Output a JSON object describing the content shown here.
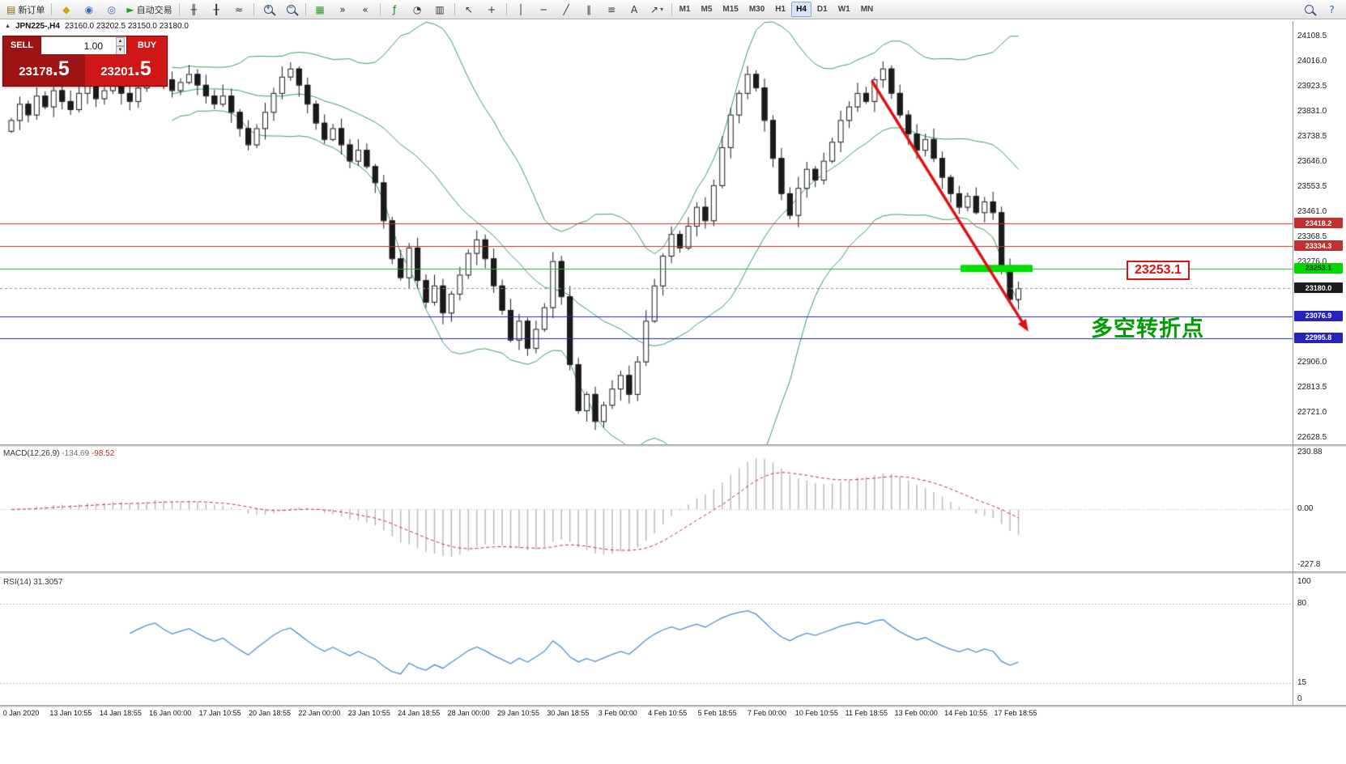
{
  "toolbar": {
    "icons": [
      {
        "name": "new-order-button",
        "glyph": "▤",
        "label": "新订单",
        "color": "#8a6d00"
      },
      {
        "name": "separator"
      },
      {
        "name": "profiles-icon",
        "glyph": "◆",
        "color": "#d8a400"
      },
      {
        "name": "market-watch-icon",
        "glyph": "◉",
        "color": "#3a6fbf"
      },
      {
        "name": "navigator-icon",
        "glyph": "◎",
        "color": "#3a6fbf"
      },
      {
        "name": "autotrading-button",
        "glyph": "►",
        "label": "自动交易",
        "color": "#18a018"
      },
      {
        "name": "separator"
      },
      {
        "name": "bar-chart-icon",
        "glyph": "╫",
        "color": "#333333"
      },
      {
        "name": "candlestick-chart-icon",
        "glyph": "╂",
        "color": "#333333"
      },
      {
        "name": "line-chart-icon",
        "glyph": "≈",
        "color": "#333333"
      },
      {
        "name": "separator"
      },
      {
        "name": "zoom-in-icon",
        "kind": "mag",
        "sign": "+"
      },
      {
        "name": "zoom-out-icon",
        "kind": "mag",
        "sign": "−"
      },
      {
        "name": "separator"
      },
      {
        "name": "tile-windows-icon",
        "glyph": "▦",
        "color": "#2f9e2f"
      },
      {
        "name": "auto-scroll-icon",
        "glyph": "»",
        "color": "#333333"
      },
      {
        "name": "chart-shift-icon",
        "glyph": "«",
        "color": "#333333"
      },
      {
        "name": "separator"
      },
      {
        "name": "indicators-icon",
        "glyph": "ƒ",
        "color": "#0a7d0a"
      },
      {
        "name": "periods-icon",
        "glyph": "◔",
        "color": "#333333"
      },
      {
        "name": "templates-icon",
        "glyph": "▥",
        "color": "#333333"
      },
      {
        "name": "separator"
      },
      {
        "name": "cursor-icon",
        "glyph": "↖",
        "color": "#333333"
      },
      {
        "name": "crosshair-icon",
        "glyph": "+",
        "color": "#333333"
      },
      {
        "name": "separator"
      },
      {
        "name": "vertical-line-icon",
        "glyph": "│",
        "color": "#333333"
      },
      {
        "name": "horizontal-line-icon",
        "glyph": "─",
        "color": "#333333"
      },
      {
        "name": "trendline-icon",
        "glyph": "╱",
        "color": "#333333"
      },
      {
        "name": "channel-icon",
        "glyph": "∥",
        "color": "#333333"
      },
      {
        "name": "fibonacci-icon",
        "glyph": "≡",
        "color": "#333333"
      },
      {
        "name": "text-icon",
        "glyph": "A",
        "color": "#333333"
      },
      {
        "name": "arrow-objects-icon",
        "glyph": "↗",
        "color": "#333333",
        "dropdown": true
      },
      {
        "name": "separator"
      }
    ],
    "timeframes": [
      "M1",
      "M5",
      "M15",
      "M30",
      "H1",
      "H4",
      "D1",
      "W1",
      "MN"
    ],
    "active_timeframe": "H4",
    "right_icons": [
      {
        "name": "search-icon",
        "kind": "mag"
      },
      {
        "name": "help-icon",
        "glyph": "?",
        "color": "#2a5db0"
      }
    ]
  },
  "chart": {
    "symbol": "JPN225-,H4",
    "ohlc": "23160.0 23202.5 23150.0 23180.0",
    "trade_panel": {
      "sell_label": "SELL",
      "buy_label": "BUY",
      "volume": "1.00",
      "sell_price_main": "23178",
      "sell_price_frac": ".5",
      "buy_price_main": "23201",
      "buy_price_frac": ".5"
    },
    "price_scale": [
      "24108.5",
      "24016.0",
      "23923.5",
      "23831.0",
      "23738.5",
      "23646.0",
      "23553.5",
      "23461.0",
      "23368.5",
      "23276.0",
      "22906.0",
      "22813.5",
      "22721.0",
      "22628.5"
    ],
    "price_tags": [
      {
        "label": "23418.2",
        "price": 23418.2,
        "bg": "#c03030",
        "fg": "#ffffff"
      },
      {
        "label": "23334.3",
        "price": 23334.3,
        "bg": "#c03030",
        "fg": "#ffffff"
      },
      {
        "label": "23253.1",
        "price": 23253.1,
        "bg": "#00d800",
        "fg": "#083308"
      },
      {
        "label": "23180.0",
        "price": 23180.0,
        "bg": "#1c1c1c",
        "fg": "#ffffff"
      },
      {
        "label": "23076.9",
        "price": 23076.9,
        "bg": "#2424bb",
        "fg": "#ffffff"
      },
      {
        "label": "22995.8",
        "price": 22995.8,
        "bg": "#2424bb",
        "fg": "#ffffff"
      }
    ],
    "annotations": {
      "price_box": "23253.1",
      "turning_point": "多空转折点"
    }
  },
  "macd_panel": {
    "title": "MACD(12,26,9)",
    "value_main": "-134.69",
    "value_signal": "-98.52",
    "scale": [
      "230.88",
      "0.00",
      "-227.8"
    ]
  },
  "rsi_panel": {
    "title": "RSI(14)",
    "value": "31.3057",
    "scale": [
      "100",
      "80",
      "15",
      "0"
    ]
  },
  "time_axis": {
    "labels": [
      "0 Jan 2020",
      "13 Jan 10:55",
      "14 Jan 18:55",
      "16 Jan 00:00",
      "17 Jan 10:55",
      "20 Jan 18:55",
      "22 Jan 00:00",
      "23 Jan 10:55",
      "24 Jan 18:55",
      "28 Jan 00:00",
      "29 Jan 10:55",
      "30 Jan 18:55",
      "3 Feb 00:00",
      "4 Feb 10:55",
      "5 Feb 18:55",
      "7 Feb 00:00",
      "10 Feb 10:55",
      "11 Feb 18:55",
      "13 Feb 00:00",
      "14 Feb 10:55",
      "17 Feb 18:55"
    ]
  },
  "chart_data": [
    {
      "type": "candlestick",
      "title": "JPN225- H4",
      "ylim": [
        22628.5,
        24108.5
      ],
      "y_step": 92.5,
      "closes": [
        23800,
        23860,
        23820,
        23890,
        23850,
        23910,
        23870,
        23840,
        23900,
        23930,
        23880,
        23910,
        23950,
        23900,
        23870,
        23920,
        23970,
        24000,
        23950,
        23910,
        23940,
        23970,
        23930,
        23890,
        23860,
        23890,
        23830,
        23770,
        23710,
        23770,
        23830,
        23900,
        23960,
        23990,
        23930,
        23860,
        23790,
        23730,
        23770,
        23710,
        23650,
        23690,
        23630,
        23570,
        23430,
        23290,
        23220,
        23330,
        23210,
        23130,
        23190,
        23090,
        23160,
        23230,
        23310,
        23360,
        23290,
        23190,
        23100,
        22990,
        23060,
        22960,
        23030,
        23110,
        23280,
        23150,
        22900,
        22730,
        22790,
        22690,
        22750,
        22810,
        22860,
        22790,
        22910,
        23060,
        23190,
        23300,
        23380,
        23330,
        23410,
        23480,
        23430,
        23560,
        23700,
        23820,
        23900,
        23970,
        23920,
        23800,
        23660,
        23530,
        23450,
        23550,
        23620,
        23580,
        23650,
        23720,
        23800,
        23850,
        23900,
        23870,
        23950,
        23990,
        23900,
        23820,
        23750,
        23690,
        23730,
        23660,
        23590,
        23530,
        23480,
        23520,
        23460,
        23500,
        23460,
        23250,
        23140,
        23180
      ],
      "overlays": {
        "bollinger": {
          "period": 20,
          "deviation": 2,
          "color": "#33a05a"
        },
        "hlines": [
          {
            "price": 23418.2,
            "color": "#c03030",
            "style": "solid"
          },
          {
            "price": 23334.3,
            "color": "#c03030",
            "style": "solid"
          },
          {
            "price": 23253.1,
            "color": "#22aa44",
            "style": "solid"
          },
          {
            "price": 23180.0,
            "color": "#909090",
            "style": "dashed"
          },
          {
            "price": 23076.9,
            "color": "#2424bb",
            "style": "solid"
          },
          {
            "price": 22995.8,
            "color": "#2424bb",
            "style": "solid"
          }
        ],
        "highlight_segment": {
          "price": 23253.1,
          "from_bar": 112.5,
          "to_bar": 121,
          "color": "#00dd00",
          "width": 9
        },
        "trend_arrow": {
          "from_bar": 102,
          "from_price": 23945,
          "to_bar": 120.5,
          "to_price": 23020,
          "color": "#e01010"
        }
      }
    },
    {
      "type": "macd",
      "params": [
        12,
        26,
        9
      ],
      "current_macd": -134.69,
      "current_signal": -98.52,
      "ylim": [
        -227.8,
        230.88
      ],
      "histogram_color": "#b5b5b5",
      "signal_color": "#c03030"
    },
    {
      "type": "rsi",
      "period": 14,
      "current": 31.3057,
      "ylim": [
        0,
        100
      ],
      "levels": [
        80,
        15
      ],
      "line_color": "#4a90d8"
    }
  ]
}
